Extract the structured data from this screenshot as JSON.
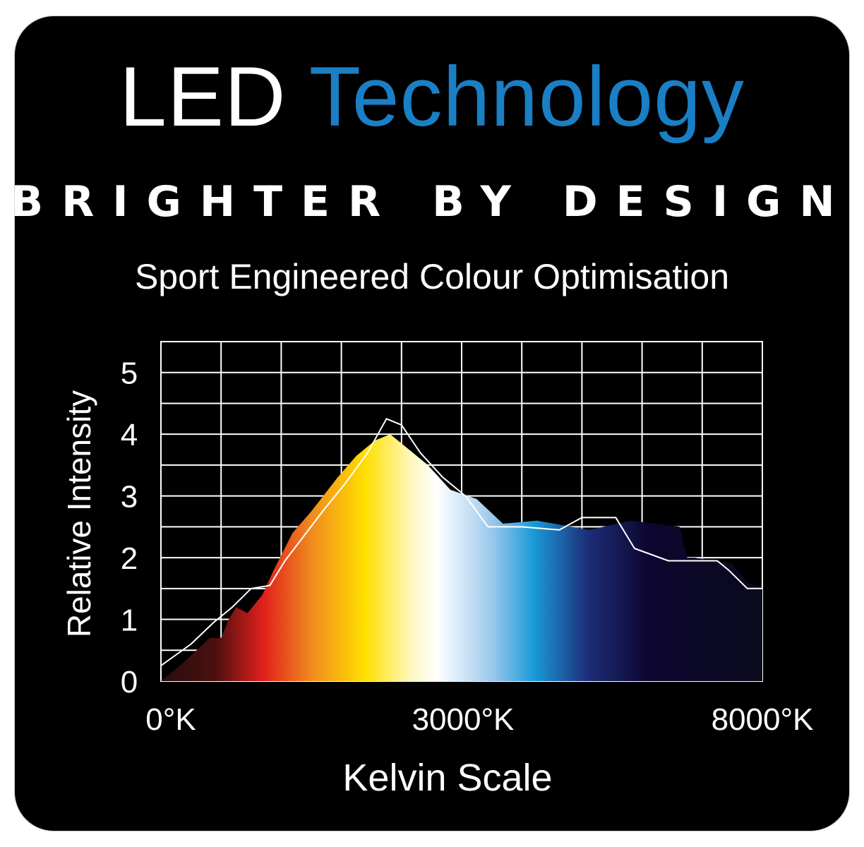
{
  "title": {
    "part1": "LED",
    "part2": "Technology"
  },
  "tagline": "BRIGHTER BY DESIGN",
  "subtitle": "Sport Engineered Colour Optimisation",
  "colors": {
    "title_accent": "#1a7fc4",
    "background": "#000000",
    "text": "#ffffff"
  },
  "chart_data": {
    "type": "area",
    "xlabel": "Kelvin Scale",
    "ylabel": "Relative Intensity",
    "x_ticks": [
      "0°K",
      "3000°K",
      "8000°K"
    ],
    "y_ticks": [
      "0",
      "1",
      "2",
      "3",
      "4",
      "5"
    ],
    "xlim": [
      0,
      8000
    ],
    "ylim": [
      0,
      5.5
    ],
    "grid": true,
    "series": [
      {
        "x": [
          0,
          300,
          650,
          800,
          900,
          1000,
          1150,
          1350,
          1500,
          1750,
          2000,
          2350,
          2600,
          2850,
          3050,
          3300,
          3550,
          3850,
          4200,
          4550,
          5000,
          5700,
          6250,
          6900,
          7000,
          7100,
          7600,
          7800,
          8000
        ],
        "y": [
          0,
          0.3,
          0.7,
          0.7,
          1.0,
          1.2,
          1.1,
          1.4,
          1.8,
          2.4,
          2.75,
          3.3,
          3.65,
          3.9,
          4.0,
          3.75,
          3.5,
          3.1,
          2.95,
          2.55,
          2.6,
          2.45,
          2.6,
          2.5,
          2.0,
          2.0,
          1.9,
          1.6,
          1.5
        ],
        "fill": "spectrum"
      },
      {
        "x": [
          0,
          400,
          700,
          950,
          1200,
          1450,
          1650,
          1900,
          2150,
          2450,
          2750,
          3000,
          3200,
          3450,
          3750,
          4050,
          4350,
          4800,
          5300,
          5600,
          6050,
          6300,
          6750,
          6850,
          7150,
          7400,
          7550,
          7800,
          8000
        ],
        "y": [
          0.25,
          0.6,
          0.95,
          1.2,
          1.5,
          1.55,
          1.95,
          2.35,
          2.75,
          3.2,
          3.7,
          4.25,
          4.15,
          3.7,
          3.3,
          3.0,
          2.5,
          2.5,
          2.45,
          2.65,
          2.65,
          2.15,
          1.95,
          1.95,
          1.95,
          1.95,
          1.8,
          1.5,
          1.5
        ],
        "stroke": "#ffffff"
      }
    ]
  }
}
